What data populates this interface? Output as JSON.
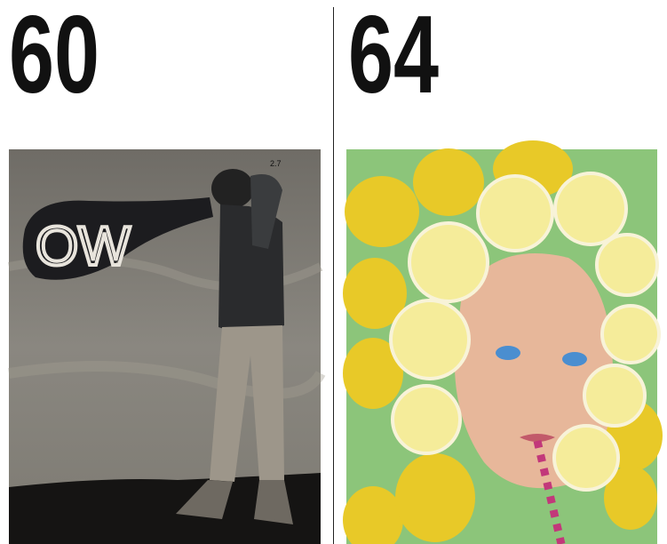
{
  "panels": [
    {
      "number": "60",
      "artwork_text": [
        "OW",
        "2.7"
      ]
    },
    {
      "number": "64"
    }
  ]
}
